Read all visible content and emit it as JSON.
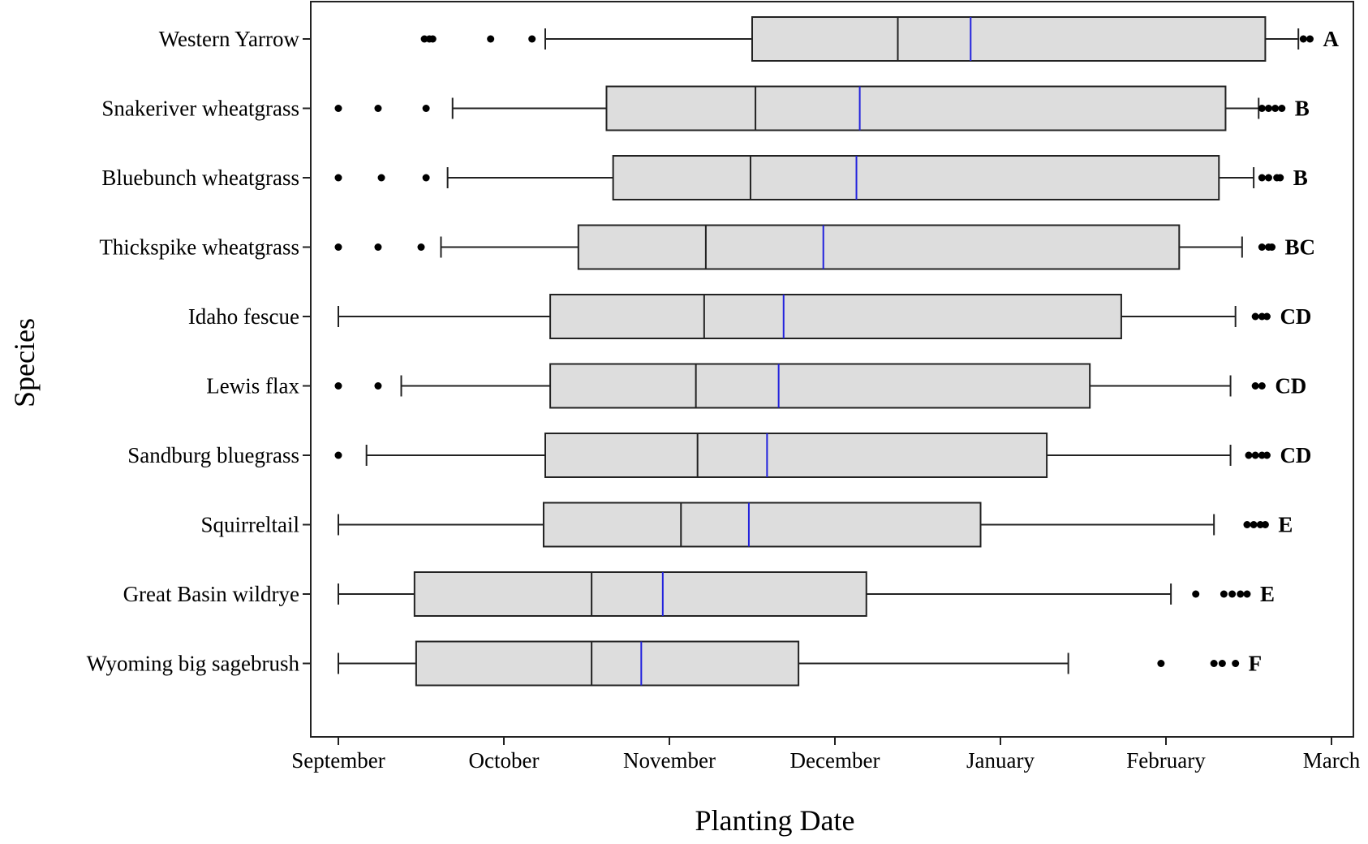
{
  "chart_data": {
    "type": "boxplot",
    "orientation": "horizontal",
    "xlabel": "Planting Date",
    "ylabel": "Species",
    "x_ticks": [
      "September",
      "October",
      "November",
      "December",
      "January",
      "February",
      "March"
    ],
    "x_unit": "months since September 1",
    "xlim": [
      -0.15,
      6.05
    ],
    "grid": false,
    "legend": "none",
    "colors": {
      "box_fill": "#dddddd",
      "box_stroke": "#222222",
      "mean_line": "#2222dd",
      "points": "#000000"
    },
    "series": [
      {
        "category": "Western Yarrow",
        "whisker_low": 1.25,
        "q1": 2.5,
        "median": 3.38,
        "mean": 3.82,
        "q3": 5.6,
        "whisker_high": 5.8,
        "outliers": [
          0.52,
          0.55,
          0.57,
          0.92,
          1.17,
          5.83,
          5.87
        ],
        "group": "A"
      },
      {
        "category": "Snakeriver wheatgrass",
        "whisker_low": 0.69,
        "q1": 1.62,
        "median": 2.52,
        "mean": 3.15,
        "q3": 5.36,
        "whisker_high": 5.56,
        "outliers": [
          0.0,
          0.24,
          0.53,
          5.58,
          5.62,
          5.66,
          5.7
        ],
        "group": "B"
      },
      {
        "category": "Bluebunch wheatgrass",
        "whisker_low": 0.66,
        "q1": 1.66,
        "median": 2.49,
        "mean": 3.13,
        "q3": 5.32,
        "whisker_high": 5.53,
        "outliers": [
          0.0,
          0.26,
          0.53,
          5.58,
          5.62,
          5.67,
          5.69
        ],
        "group": "B"
      },
      {
        "category": "Thickspike wheatgrass",
        "whisker_low": 0.62,
        "q1": 1.45,
        "median": 2.22,
        "mean": 2.93,
        "q3": 5.08,
        "whisker_high": 5.46,
        "outliers": [
          0.0,
          0.24,
          0.5,
          5.58,
          5.62,
          5.64
        ],
        "group": "BC"
      },
      {
        "category": "Idaho fescue",
        "whisker_low": 0.0,
        "q1": 1.28,
        "median": 2.21,
        "mean": 2.69,
        "q3": 4.73,
        "whisker_high": 5.42,
        "outliers": [
          5.54,
          5.58,
          5.61
        ],
        "group": "CD"
      },
      {
        "category": "Lewis flax",
        "whisker_low": 0.38,
        "q1": 1.28,
        "median": 2.16,
        "mean": 2.66,
        "q3": 4.54,
        "whisker_high": 5.39,
        "outliers": [
          0.0,
          0.24,
          5.54,
          5.58
        ],
        "group": "CD"
      },
      {
        "category": "Sandburg bluegrass",
        "whisker_low": 0.17,
        "q1": 1.25,
        "median": 2.17,
        "mean": 2.59,
        "q3": 4.28,
        "whisker_high": 5.39,
        "outliers": [
          0.0,
          5.5,
          5.54,
          5.58,
          5.61
        ],
        "group": "CD"
      },
      {
        "category": "Squirreltail",
        "whisker_low": 0.0,
        "q1": 1.24,
        "median": 2.07,
        "mean": 2.48,
        "q3": 3.88,
        "whisker_high": 5.29,
        "outliers": [
          5.49,
          5.53,
          5.57,
          5.6
        ],
        "group": "E"
      },
      {
        "category": "Great Basin wildrye",
        "whisker_low": 0.0,
        "q1": 0.46,
        "median": 1.53,
        "mean": 1.96,
        "q3": 3.19,
        "whisker_high": 5.03,
        "outliers": [
          5.18,
          5.35,
          5.4,
          5.45,
          5.49
        ],
        "group": "E"
      },
      {
        "category": "Wyoming big sagebrush",
        "whisker_low": 0.0,
        "q1": 0.47,
        "median": 1.53,
        "mean": 1.83,
        "q3": 2.78,
        "whisker_high": 4.41,
        "outliers": [
          4.97,
          5.29,
          5.34,
          5.42
        ],
        "group": "F"
      }
    ]
  }
}
